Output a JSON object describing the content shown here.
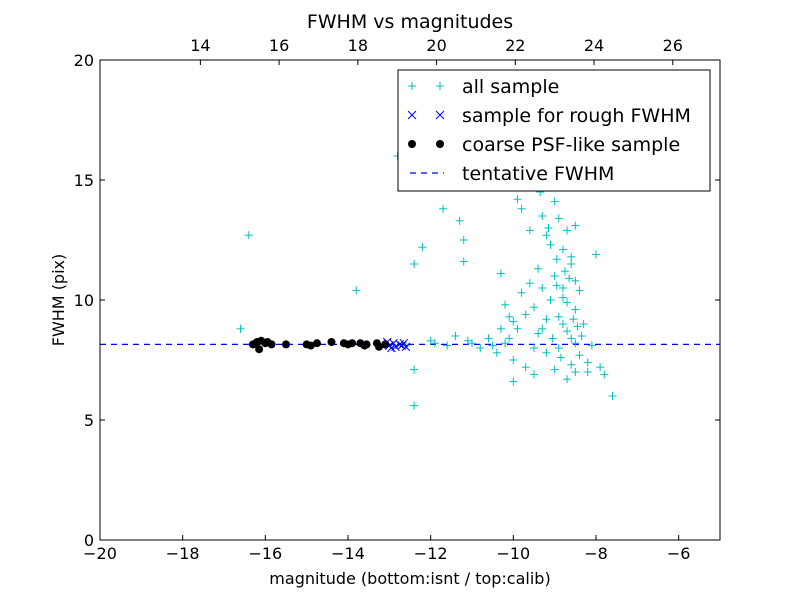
{
  "chart_data": {
    "type": "scatter",
    "title": "FWHM vs magnitudes",
    "xlabel": "magnitude (bottom:isnt / top:calib)",
    "ylabel": "FWHM (pix)",
    "xlim": [
      -20,
      -5
    ],
    "ylim": [
      0,
      20
    ],
    "top_xlim": [
      11.45,
      27.2
    ],
    "x_ticks": [
      -20,
      -18,
      -16,
      -14,
      -12,
      -10,
      -8,
      -6
    ],
    "x_tick_labels": [
      "−20",
      "−18",
      "−16",
      "−14",
      "−12",
      "−10",
      "−8",
      "−6"
    ],
    "y_ticks": [
      0,
      5,
      10,
      15,
      20
    ],
    "y_tick_labels": [
      "0",
      "5",
      "10",
      "15",
      "20"
    ],
    "top_x_ticks": [
      14,
      16,
      18,
      20,
      22,
      24,
      26
    ],
    "top_x_tick_labels": [
      "14",
      "16",
      "18",
      "20",
      "22",
      "24",
      "26"
    ],
    "grid": false,
    "legend_position": "top-right",
    "series": [
      {
        "name": "all sample",
        "marker": "plus",
        "color": "#00bfbf",
        "points": [
          [
            -16.4,
            12.7
          ],
          [
            -16.6,
            8.8
          ],
          [
            -13.8,
            10.4
          ],
          [
            -12.8,
            16.0
          ],
          [
            -12.4,
            11.5
          ],
          [
            -12.2,
            12.2
          ],
          [
            -12.0,
            8.3
          ],
          [
            -12.4,
            7.1
          ],
          [
            -12.4,
            5.6
          ],
          [
            -11.7,
            13.8
          ],
          [
            -11.3,
            13.3
          ],
          [
            -11.2,
            12.5
          ],
          [
            -11.2,
            11.6
          ],
          [
            -11.4,
            8.5
          ],
          [
            -11.0,
            8.2
          ],
          [
            -10.6,
            8.4
          ],
          [
            -10.4,
            7.8
          ],
          [
            -10.7,
            15.1
          ],
          [
            -10.3,
            11.1
          ],
          [
            -10.1,
            8.4
          ],
          [
            -10.0,
            7.5
          ],
          [
            -10.0,
            6.6
          ],
          [
            -9.6,
            15.3
          ],
          [
            -9.6,
            12.9
          ],
          [
            -10.2,
            9.8
          ],
          [
            -10.0,
            9.1
          ],
          [
            -9.8,
            10.3
          ],
          [
            -9.6,
            10.7
          ],
          [
            -9.5,
            9.7
          ],
          [
            -9.4,
            8.6
          ],
          [
            -9.3,
            13.5
          ],
          [
            -9.2,
            12.7
          ],
          [
            -9.0,
            14.1
          ],
          [
            -9.0,
            11.0
          ],
          [
            -8.9,
            9.3
          ],
          [
            -8.9,
            8.0
          ],
          [
            -8.8,
            12.1
          ],
          [
            -8.8,
            10.1
          ],
          [
            -8.7,
            14.9
          ],
          [
            -8.7,
            8.7
          ],
          [
            -8.6,
            11.5
          ],
          [
            -8.6,
            7.3
          ],
          [
            -8.5,
            13.1
          ],
          [
            -8.5,
            9.6
          ],
          [
            -8.5,
            8.2
          ],
          [
            -8.4,
            10.4
          ],
          [
            -8.4,
            7.7
          ],
          [
            -8.3,
            9.0
          ],
          [
            -8.2,
            7.4
          ],
          [
            -8.0,
            11.9
          ],
          [
            -7.9,
            7.2
          ],
          [
            -7.8,
            6.9
          ],
          [
            -7.6,
            6.0
          ],
          [
            -9.1,
            10.0
          ],
          [
            -9.2,
            9.2
          ],
          [
            -9.4,
            11.3
          ],
          [
            -9.3,
            8.8
          ],
          [
            -9.1,
            12.3
          ],
          [
            -8.95,
            10.6
          ],
          [
            -8.8,
            9.0
          ],
          [
            -8.7,
            9.9
          ],
          [
            -8.65,
            10.9
          ],
          [
            -8.6,
            8.4
          ],
          [
            -8.55,
            9.2
          ],
          [
            -8.6,
            11.8
          ],
          [
            -8.7,
            12.9
          ],
          [
            -8.9,
            13.4
          ],
          [
            -9.05,
            8.4
          ],
          [
            -9.2,
            7.8
          ],
          [
            -9.0,
            7.1
          ],
          [
            -8.85,
            7.6
          ],
          [
            -8.45,
            8.9
          ],
          [
            -8.35,
            8.5
          ],
          [
            -8.5,
            10.8
          ],
          [
            -8.75,
            11.2
          ],
          [
            -9.3,
            10.5
          ],
          [
            -9.5,
            8.0
          ],
          [
            -9.7,
            9.4
          ],
          [
            -9.9,
            8.8
          ],
          [
            -8.95,
            11.7
          ],
          [
            -8.8,
            10.5
          ],
          [
            -9.15,
            13.0
          ],
          [
            -9.35,
            14.5
          ],
          [
            -8.9,
            15.5
          ],
          [
            -9.8,
            13.8
          ],
          [
            -9.9,
            14.2
          ],
          [
            -10.3,
            8.8
          ],
          [
            -10.1,
            9.3
          ],
          [
            -9.7,
            7.2
          ],
          [
            -9.5,
            6.9
          ],
          [
            -8.7,
            6.7
          ],
          [
            -8.5,
            7.0
          ],
          [
            -8.2,
            7.0
          ],
          [
            -8.1,
            8.1
          ],
          [
            -12.9,
            8.0
          ],
          [
            -12.6,
            8.1
          ],
          [
            -11.9,
            8.2
          ],
          [
            -11.6,
            8.1
          ],
          [
            -11.1,
            8.3
          ],
          [
            -10.8,
            8.0
          ],
          [
            -10.5,
            8.1
          ],
          [
            -10.2,
            8.2
          ]
        ]
      },
      {
        "name": "sample for rough FWHM",
        "marker": "x",
        "color": "#0000ff",
        "points": [
          [
            -13.2,
            8.15
          ],
          [
            -13.0,
            8.1
          ],
          [
            -12.9,
            8.2
          ],
          [
            -12.85,
            8.05
          ],
          [
            -12.75,
            8.15
          ],
          [
            -12.7,
            8.1
          ],
          [
            -12.65,
            8.2
          ],
          [
            -12.6,
            8.05
          ],
          [
            -13.05,
            8.25
          ],
          [
            -12.95,
            8.0
          ]
        ]
      },
      {
        "name": "coarse PSF-like sample",
        "marker": "circle",
        "color": "#000000",
        "points": [
          [
            -16.3,
            8.15
          ],
          [
            -16.2,
            8.25
          ],
          [
            -16.15,
            7.95
          ],
          [
            -16.1,
            8.3
          ],
          [
            -16.0,
            8.2
          ],
          [
            -15.95,
            8.25
          ],
          [
            -15.85,
            8.15
          ],
          [
            -15.5,
            8.15
          ],
          [
            -15.0,
            8.15
          ],
          [
            -14.9,
            8.1
          ],
          [
            -14.75,
            8.2
          ],
          [
            -14.4,
            8.25
          ],
          [
            -14.1,
            8.2
          ],
          [
            -14.0,
            8.15
          ],
          [
            -13.9,
            8.2
          ],
          [
            -13.7,
            8.2
          ],
          [
            -13.6,
            8.1
          ],
          [
            -13.55,
            8.15
          ],
          [
            -13.3,
            8.2
          ],
          [
            -13.25,
            8.05
          ],
          [
            -13.1,
            8.15
          ]
        ]
      }
    ],
    "reference_lines": [
      {
        "name": "tentative FWHM",
        "style": "dashed",
        "color": "#0000ff",
        "y": 8.15
      }
    ]
  }
}
